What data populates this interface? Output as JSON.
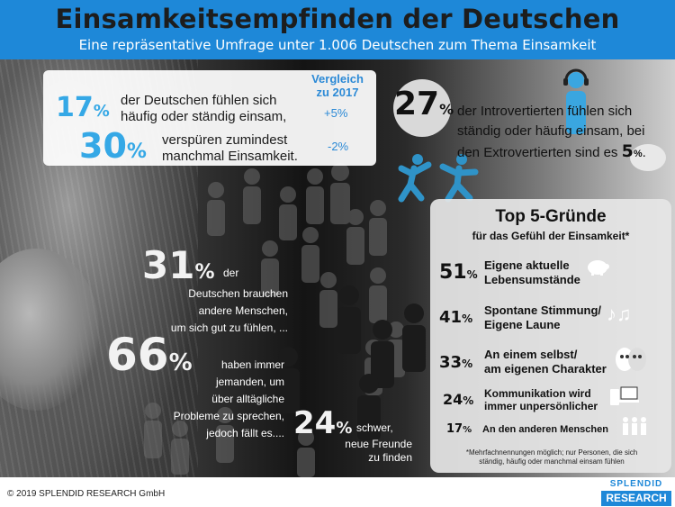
{
  "header": {
    "title": "Einsamkeitsempfinden der Deutschen",
    "subtitle": "Eine repräsentative Umfrage unter 1.006 Deutschen zum Thema Einsamkeit"
  },
  "top_stats": {
    "stat1_value": "17",
    "stat1_unit": "%",
    "stat1_text_l1": "der Deutschen fühlen sich",
    "stat1_text_l2": "häufig oder ständig einsam,",
    "stat2_value": "30",
    "stat2_unit": "%",
    "stat2_text_l1": "verspüren zumindest",
    "stat2_text_l2": "manchmal Einsamkeit.",
    "comparison_label_l1": "Vergleich",
    "comparison_label_l2": "zu 2017",
    "comparison_1": "+5%",
    "comparison_2": "-2%"
  },
  "introverts": {
    "value": "27",
    "unit": "%",
    "text_l1": "der Introvertierten fühlen sich",
    "text_l2": "ständig oder häufig einsam, bei",
    "text_l3": "den Extrovertierten  sind es",
    "extro_value": "5",
    "extro_unit": "%",
    "period": "."
  },
  "needs": {
    "value1": "31",
    "unit1": "%",
    "text1_l1": "der",
    "text1_l2": "Deutschen brauchen",
    "text1_l3": "andere Menschen,",
    "text1_l4": "um sich gut zu fühlen, ...",
    "value2": "66",
    "unit2": "%",
    "text2_l1": "haben immer",
    "text2_l2": "jemanden, um",
    "text2_l3": "über alltägliche",
    "text2_l4": "Probleme zu sprechen,",
    "text2_l5": "jedoch fällt es....",
    "value3": "24",
    "unit3": "%",
    "text3_l1": "schwer,",
    "text3_l2": "neue Freunde",
    "text3_l3": "zu finden"
  },
  "reasons": {
    "title": "Top 5-Gründe",
    "subtitle": "für das Gefühl der Einsamkeit*",
    "items": [
      {
        "value": "51",
        "unit": "%",
        "label_l1": "Eigene aktuelle",
        "label_l2": "Lebensumstände",
        "icon": "piggy-bank-icon"
      },
      {
        "value": "41",
        "unit": "%",
        "label_l1": "Spontane Stimmung/",
        "label_l2": "Eigene Laune",
        "icon": "music-notes-icon"
      },
      {
        "value": "33",
        "unit": "%",
        "label_l1": "An einem selbst/",
        "label_l2": "am eigenen Charakter",
        "icon": "theater-masks-icon"
      },
      {
        "value": "24",
        "unit": "%",
        "label_l1": "Kommunikation wird",
        "label_l2": "immer unpersönlicher",
        "icon": "devices-icon"
      },
      {
        "value": "17",
        "unit": "%",
        "label_l1": "An den anderen Menschen",
        "label_l2": "",
        "icon": "people-icon"
      }
    ],
    "footnote_l1": "*Mehrfachnennungen möglich; nur Personen, die sich",
    "footnote_l2": "ständig, häufig oder manchmal einsam fühlen"
  },
  "footer": {
    "copyright": "© 2019 SPLENDID RESEARCH GmbH",
    "logo_top": "SPLENDID",
    "logo_bottom": "RESEARCH"
  },
  "colors": {
    "accent": "#1e88d8",
    "highlight_blue": "#35a8e6"
  }
}
